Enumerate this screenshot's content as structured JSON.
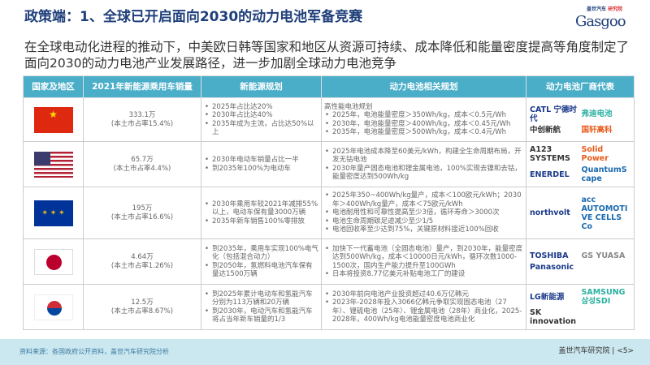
{
  "title": "政策端：1、全球已开启面向2030的动力电池军备竞赛",
  "logo": {
    "top": "盖世汽车",
    "tag": "研究院",
    "word": "Gasgoo"
  },
  "lead": "在全球电动化进程的推动下，中美欧日韩等国家和地区从资源可持续、成本降低和能量密度提高等角度制定了面向2030的动力电池产业发展路径，进一步加剧全球动力电池竞争",
  "table": {
    "headers": [
      "国家及地区",
      "2021年新能源乘用车销量",
      "新能源规划",
      "动力电池相关规划",
      "动力电池厂商代表"
    ],
    "rows": [
      {
        "flag": "china",
        "sales": "333.1万",
        "share": "(本土市占率15.4%)",
        "plan": [
          "2025年占比达20%",
          "2030年占比达40%",
          "2035年成为主流，占比达50%以上"
        ],
        "battery_intro": "高性能电池规划",
        "battery": [
          "2025年，电池能量密度＞350Wh/kg，成本＜0.5元/Wh",
          "2030年，电池能量密度＞400Wh/kg，成本＜0.45元/Wh",
          "2035年，电池能量密度＞500Wh/kg，成本＜0.4元/Wh"
        ],
        "brands": [
          "CATL 宁德时代",
          "弗迪电池",
          "中创新航",
          "国轩高科"
        ]
      },
      {
        "flag": "usa",
        "sales": "65.7万",
        "share": "(本土市占率4.4%)",
        "plan": [
          "2030年电动车销量占比一半",
          "到2035年100%为电动车"
        ],
        "battery_intro": "",
        "battery": [
          "2025年电池成本降至60美元/kWh，构建全生命周期布局，开发无钴电池",
          "2030年量产固态电池和锂金属电池，100%实现去镍和去钴，能量密度达到500Wh/kg"
        ],
        "brands": [
          "A123 SYSTEMS",
          "Solid Power",
          "ENERDEL",
          "QuantumScape"
        ]
      },
      {
        "flag": "eu",
        "sales": "195万",
        "share": "(本土市占率16.6%)",
        "plan": [
          "2030年乘用车较2021年减排55%以上，电动车保有量3000万辆",
          "2035年新车销售100%零排放"
        ],
        "battery_intro": "",
        "battery": [
          "2025年350~400Wh/kg量产，成本＜100欧元/kWh；2030年＞400Wh/kg量产，成本＜75欧元/kWh",
          "电池耐用性和可靠性提高至少3倍，循环寿命＞3000次",
          "电池生命周期碳足迹减少至少1/5",
          "电池回收率至少达到75%，关键原材料接近100%回收"
        ],
        "brands": [
          "northvolt",
          "acc AUTOMOTIVE CELLS Co"
        ]
      },
      {
        "flag": "japan",
        "sales": "4.64万",
        "share": "(本土市占率1.26%)",
        "plan": [
          "到2035年，乘用车实现100%电气化（包括混合动力）",
          "到2050年，氢燃料电池汽车保有量达1500万辆"
        ],
        "battery_intro": "",
        "battery": [
          "加快下一代蓄电池（全固态电池）量产，到2030年，能量密度达到500Wh/kg，成本＜10000日元/kWh，循环次数1000-1500次，国内生产能力提升至100GWh",
          "日本将投资8.77亿美元补贴电池工厂的建设"
        ],
        "brands": [
          "TOSHIBA",
          "GS YUASA",
          "Panasonic"
        ]
      },
      {
        "flag": "korea",
        "sales": "12.5万",
        "share": "(本土市占率8.67%)",
        "plan": [
          "到2025年累计电动车和氢能汽车分别为113万辆和20万辆",
          "到2030年，电动汽车和氢能汽车将占当年新车销量的1/3"
        ],
        "battery_intro": "",
        "battery": [
          "2030年前向电池产业投资超过40.6万亿韩元",
          "2023年-2028年投入3066亿韩元争取实现固态电池（27年）、锂硫电池（25年）、锂金属电池（28年）商业化，2025-2028年，400Wh/kg电池能量密度电池商业化"
        ],
        "brands": [
          "LG新能源",
          "SAMSUNG 삼성SDI",
          "SK innovation"
        ]
      }
    ]
  },
  "footer": {
    "source": "资料来源：各国政府公开资料，盖世汽车研究院分析",
    "page": "盖世汽车研究院 | <5>"
  },
  "colors": {
    "header": "#4aaec8",
    "title": "#1f3f7a",
    "footer": "#cbe7ef"
  }
}
